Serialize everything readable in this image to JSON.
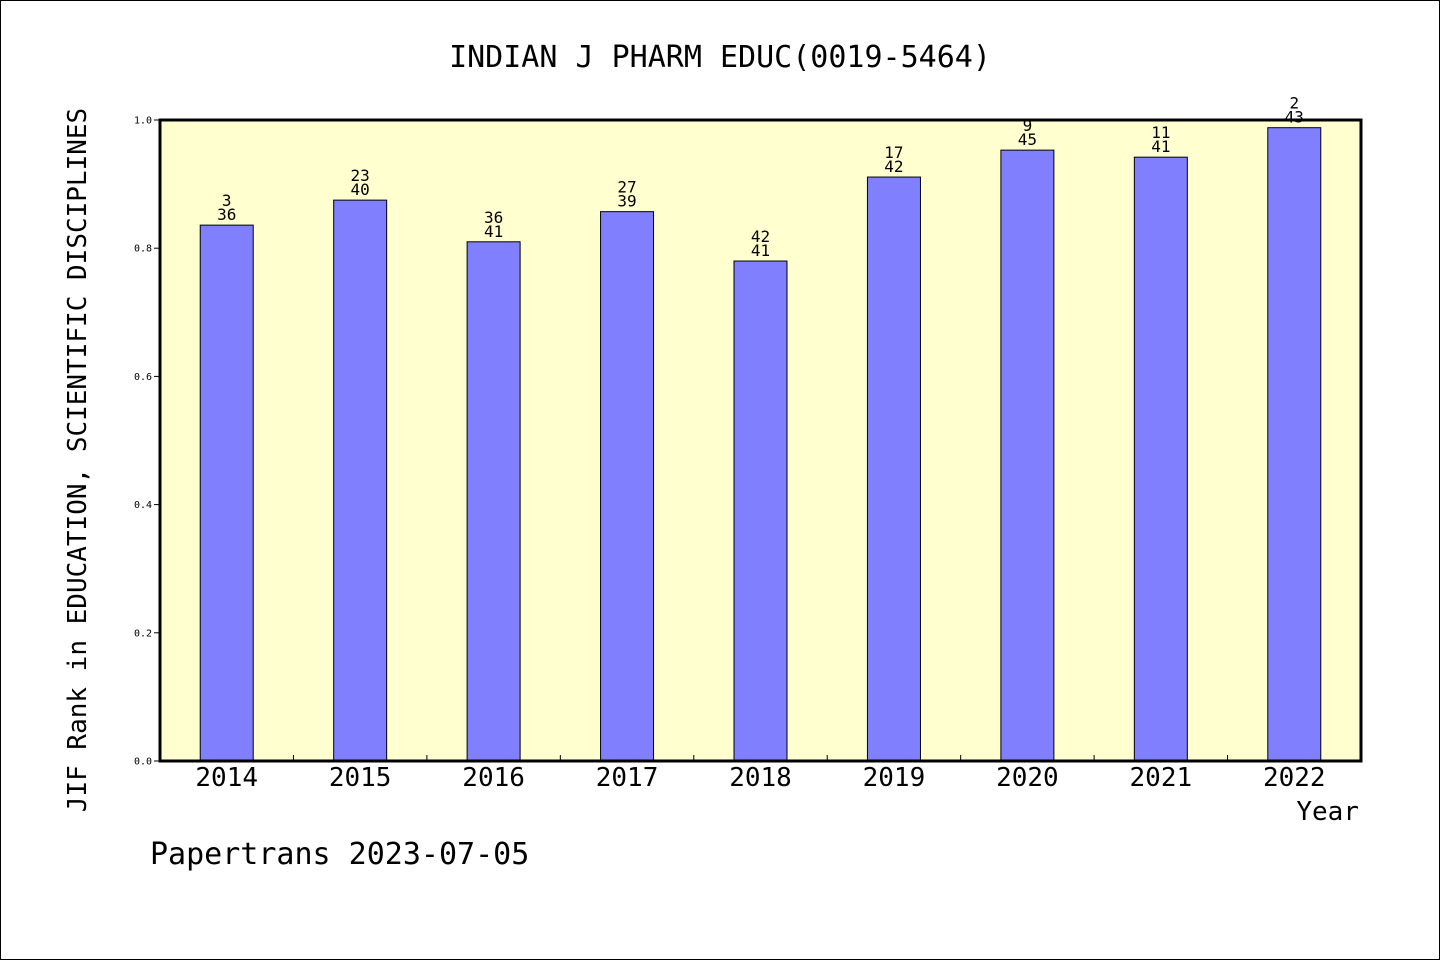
{
  "chart_data": {
    "type": "bar",
    "title": "INDIAN J PHARM EDUC(0019-5464)",
    "xlabel": "Year",
    "ylabel": "JIF Rank in EDUCATION, SCIENTIFIC DISCIPLINES",
    "ylim": [
      0,
      1.0
    ],
    "yticks": [
      "0.0",
      "0.2",
      "0.4",
      "0.6",
      "0.8",
      "1.0"
    ],
    "categories": [
      "2014",
      "2015",
      "2016",
      "2017",
      "2018",
      "2019",
      "2020",
      "2021",
      "2022"
    ],
    "values": [
      0.836,
      0.875,
      0.81,
      0.857,
      0.78,
      0.911,
      0.953,
      0.942,
      0.988
    ],
    "labels_top": [
      "3",
      "23",
      "36",
      "27",
      "42",
      "17",
      "9",
      "11",
      "2"
    ],
    "labels_bottom": [
      "36",
      "40",
      "41",
      "39",
      "41",
      "42",
      "45",
      "41",
      "43"
    ],
    "grid": false,
    "colors": {
      "bar": "#8080ff",
      "plot_background": "#ffffd0",
      "border": "#000000"
    }
  },
  "footer": "Papertrans 2023-07-05"
}
